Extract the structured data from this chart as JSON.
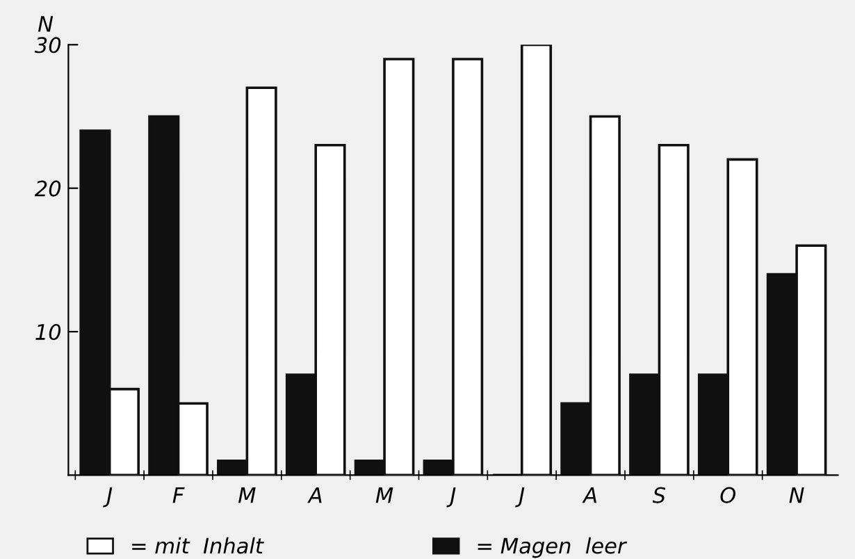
{
  "chart_data": {
    "type": "bar",
    "ylabel": "N",
    "categories": [
      "J",
      "F",
      "M",
      "A",
      "M",
      "J",
      "J",
      "A",
      "S",
      "O",
      "N"
    ],
    "series": [
      {
        "name": "= Magen  leer",
        "color": "#111111",
        "values": [
          24,
          25,
          1,
          7,
          1,
          1,
          0,
          5,
          7,
          7,
          14
        ]
      },
      {
        "name": "= mit  Inhalt",
        "color": "#ffffff",
        "values": [
          6,
          5,
          27,
          23,
          29,
          29,
          30,
          25,
          23,
          22,
          16
        ]
      }
    ],
    "ylim": [
      0,
      30
    ],
    "yticks": [
      10,
      20,
      30
    ],
    "grid": false,
    "legend": "bottom"
  }
}
